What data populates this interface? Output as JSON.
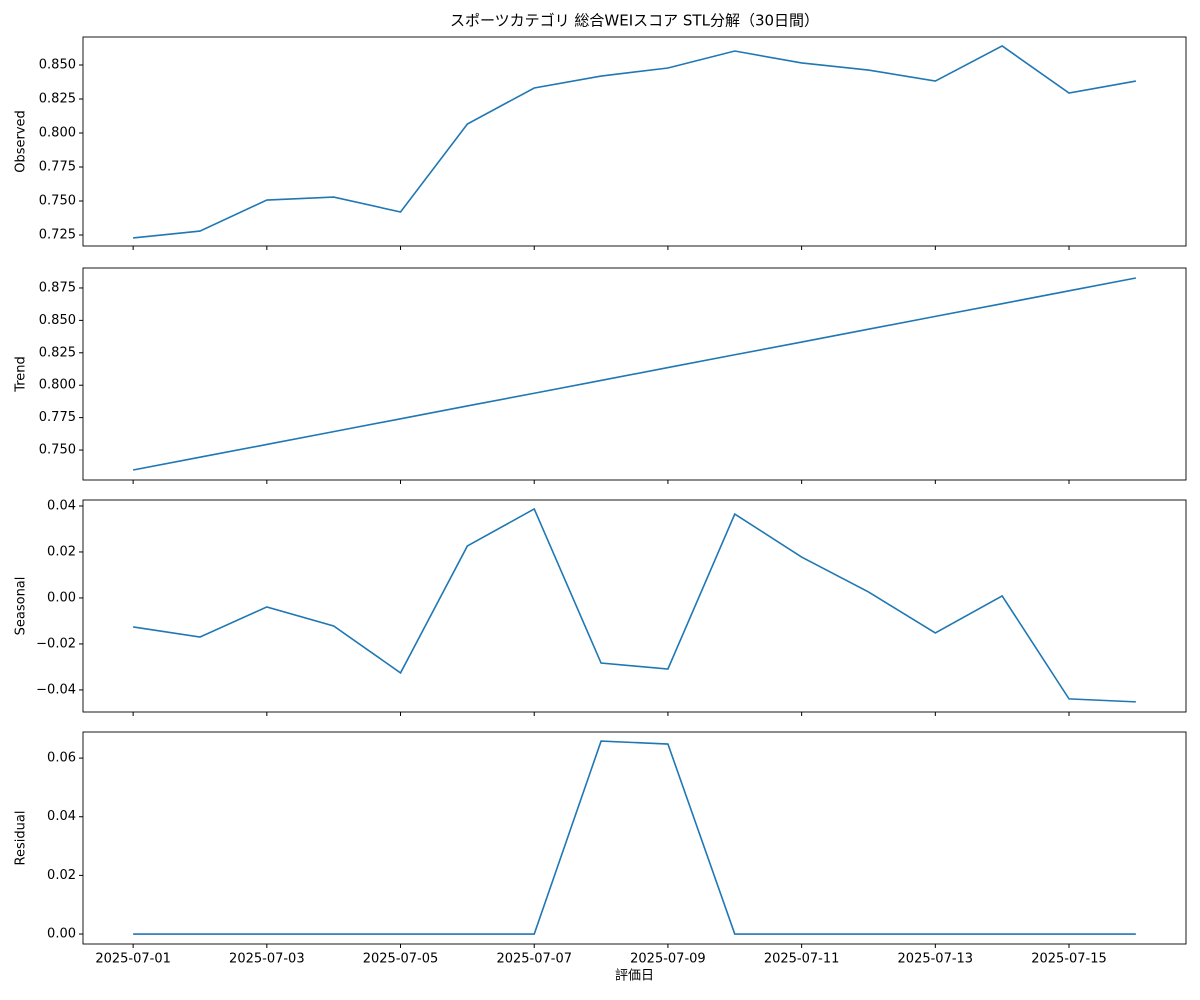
{
  "chart_data": [
    {
      "type": "line",
      "title": "スポーツカテゴリ 総合WEIスコア STL分解（30日間）",
      "ylabel": "Observed",
      "x": [
        "2025-07-01",
        "2025-07-02",
        "2025-07-03",
        "2025-07-04",
        "2025-07-05",
        "2025-07-06",
        "2025-07-07",
        "2025-07-08",
        "2025-07-09",
        "2025-07-10",
        "2025-07-11",
        "2025-07-12",
        "2025-07-13",
        "2025-07-14",
        "2025-07-15",
        "2025-07-16"
      ],
      "series": [
        {
          "color": "#1f77b4",
          "values": [
            0.7228,
            0.7279,
            0.7507,
            0.7529,
            0.7419,
            0.8066,
            0.8331,
            0.8419,
            0.8478,
            0.8603,
            0.8515,
            0.8463,
            0.8382,
            0.864,
            0.8294,
            0.8382
          ]
        }
      ],
      "ylim": [
        0.7169,
        0.8706
      ],
      "yticks": [
        0.725,
        {
          "value": 0.75,
          "label": "0.750"
        },
        0.775,
        {
          "value": 0.8,
          "label": "0.800"
        },
        0.825,
        {
          "value": 0.85,
          "label": "0.850"
        }
      ]
    },
    {
      "type": "line",
      "ylabel": "Trend",
      "x": [
        "2025-07-01",
        "2025-07-02",
        "2025-07-03",
        "2025-07-04",
        "2025-07-05",
        "2025-07-06",
        "2025-07-07",
        "2025-07-08",
        "2025-07-09",
        "2025-07-10",
        "2025-07-11",
        "2025-07-12",
        "2025-07-13",
        "2025-07-14",
        "2025-07-15",
        "2025-07-16"
      ],
      "series": [
        {
          "color": "#1f77b4",
          "values": [
            0.7346,
            0.7445,
            0.7543,
            0.7642,
            0.7741,
            0.784,
            0.7938,
            0.8037,
            0.8136,
            0.8235,
            0.8333,
            0.8432,
            0.8531,
            0.8629,
            0.8728,
            0.8827
          ]
        }
      ],
      "ylim": [
        0.7269,
        0.8904
      ],
      "yticks": [
        {
          "value": 0.75,
          "label": "0.750"
        },
        0.775,
        {
          "value": 0.8,
          "label": "0.800"
        },
        0.825,
        {
          "value": 0.85,
          "label": "0.850"
        },
        0.875
      ]
    },
    {
      "type": "line",
      "ylabel": "Seasonal",
      "x": [
        "2025-07-01",
        "2025-07-02",
        "2025-07-03",
        "2025-07-04",
        "2025-07-05",
        "2025-07-06",
        "2025-07-07",
        "2025-07-08",
        "2025-07-09",
        "2025-07-10",
        "2025-07-11",
        "2025-07-12",
        "2025-07-13",
        "2025-07-14",
        "2025-07-15",
        "2025-07-16"
      ],
      "series": [
        {
          "color": "#1f77b4",
          "values": [
            -0.0126,
            -0.017,
            -0.0039,
            -0.0122,
            -0.0326,
            0.0226,
            0.0387,
            -0.0283,
            -0.0309,
            0.0365,
            0.0178,
            0.0026,
            -0.0152,
            0.0009,
            -0.0439,
            -0.0452
          ]
        }
      ],
      "ylim": [
        -0.0496,
        0.0426
      ],
      "yticks": [
        {
          "value": -0.04,
          "label": "−0.04"
        },
        {
          "value": -0.02,
          "label": "−0.02"
        },
        {
          "value": 0,
          "label": "0.00"
        },
        0.02,
        0.04
      ]
    },
    {
      "type": "line",
      "ylabel": "Residual",
      "xlabel": "評価日",
      "x": [
        "2025-07-01",
        "2025-07-02",
        "2025-07-03",
        "2025-07-04",
        "2025-07-05",
        "2025-07-06",
        "2025-07-07",
        "2025-07-08",
        "2025-07-09",
        "2025-07-10",
        "2025-07-11",
        "2025-07-12",
        "2025-07-13",
        "2025-07-14",
        "2025-07-15",
        "2025-07-16"
      ],
      "series": [
        {
          "color": "#1f77b4",
          "values": [
            0,
            0,
            0,
            0,
            0,
            0,
            0,
            0.0658,
            0.0648,
            0,
            0,
            0,
            0,
            0,
            0,
            0
          ]
        }
      ],
      "ylim": [
        -0.0034,
        0.0689
      ],
      "yticks": [
        {
          "value": 0,
          "label": "0.00"
        },
        0.02,
        0.04,
        0.06
      ],
      "xticks": [
        "2025-07-01",
        "2025-07-03",
        "2025-07-05",
        "2025-07-07",
        "2025-07-09",
        "2025-07-11",
        "2025-07-13",
        "2025-07-15"
      ]
    }
  ]
}
